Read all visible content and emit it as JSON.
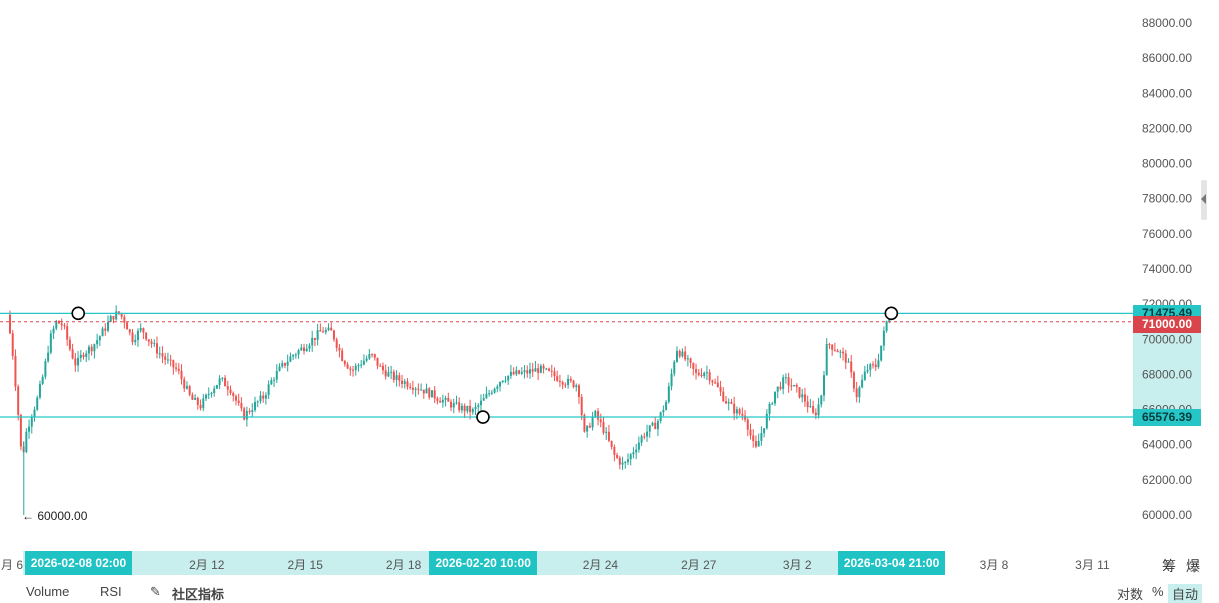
{
  "chart_data": {
    "type": "candlestick",
    "ylim": [
      60000,
      88000
    ],
    "y_ticks": [
      "88000.00",
      "86000.00",
      "84000.00",
      "82000.00",
      "80000.00",
      "78000.00",
      "76000.00",
      "74000.00",
      "72000.00",
      "70000.00",
      "68000.00",
      "66000.00",
      "64000.00",
      "62000.00",
      "60000.00"
    ],
    "x_ticks": [
      {
        "label": "月 6",
        "t": 0
      },
      {
        "label": "2月 12",
        "t": 6
      },
      {
        "label": "2月 15",
        "t": 9
      },
      {
        "label": "2月 18",
        "t": 12
      },
      {
        "label": "2月 24",
        "t": 18
      },
      {
        "label": "2月 27",
        "t": 21
      },
      {
        "label": "3月 2",
        "t": 24
      },
      {
        "label": "3月 8",
        "t": 30
      },
      {
        "label": "3月 11",
        "t": 33
      }
    ],
    "x_highlights": [
      {
        "label": "2026-02-08 02:00",
        "t": 2.08
      },
      {
        "label": "2026-02-20 10:00",
        "t": 14.42
      },
      {
        "label": "2026-03-04 21:00",
        "t": 26.87
      }
    ],
    "levels": {
      "upper": 71475.49,
      "upper_label": "71475.49",
      "lower": 65576.39,
      "lower_label": "65576.39",
      "current": 71000.0,
      "current_label": "71000.00"
    },
    "low_annotation": {
      "label": "← 60000.00",
      "value": 60000,
      "t": 0.42
    },
    "markers": [
      {
        "t": 2.08,
        "value": 71475.49
      },
      {
        "t": 14.42,
        "value": 65576.39
      },
      {
        "t": 26.87,
        "value": 71475.49
      }
    ],
    "price_path": [
      [
        0.0,
        71400
      ],
      [
        0.15,
        69500
      ],
      [
        0.3,
        66500
      ],
      [
        0.45,
        63000
      ],
      [
        0.55,
        64500
      ],
      [
        0.7,
        65500
      ],
      [
        0.9,
        66500
      ],
      [
        1.1,
        68000
      ],
      [
        1.3,
        70000
      ],
      [
        1.5,
        71000
      ],
      [
        1.7,
        70800
      ],
      [
        1.9,
        69500
      ],
      [
        2.1,
        68500
      ],
      [
        2.3,
        69200
      ],
      [
        2.6,
        69600
      ],
      [
        2.9,
        70400
      ],
      [
        3.2,
        71300
      ],
      [
        3.4,
        71500
      ],
      [
        3.6,
        71000
      ],
      [
        3.8,
        70000
      ],
      [
        4.1,
        70600
      ],
      [
        4.3,
        70000
      ],
      [
        4.6,
        69300
      ],
      [
        4.9,
        68700
      ],
      [
        5.2,
        68200
      ],
      [
        5.6,
        66600
      ],
      [
        5.9,
        66200
      ],
      [
        6.2,
        67100
      ],
      [
        6.5,
        67700
      ],
      [
        6.8,
        67200
      ],
      [
        7.0,
        66400
      ],
      [
        7.2,
        65600
      ],
      [
        7.5,
        66200
      ],
      [
        7.8,
        66700
      ],
      [
        8.1,
        67800
      ],
      [
        8.4,
        68500
      ],
      [
        8.7,
        69100
      ],
      [
        9.0,
        69500
      ],
      [
        9.3,
        70000
      ],
      [
        9.6,
        70500
      ],
      [
        9.9,
        70400
      ],
      [
        10.2,
        69000
      ],
      [
        10.5,
        68200
      ],
      [
        10.8,
        68700
      ],
      [
        11.1,
        69100
      ],
      [
        11.4,
        68300
      ],
      [
        11.8,
        67800
      ],
      [
        12.2,
        67500
      ],
      [
        12.6,
        67200
      ],
      [
        13.0,
        66800
      ],
      [
        13.4,
        66400
      ],
      [
        13.8,
        66100
      ],
      [
        14.2,
        65900
      ],
      [
        14.5,
        66500
      ],
      [
        14.8,
        67200
      ],
      [
        15.1,
        67800
      ],
      [
        15.4,
        68000
      ],
      [
        15.8,
        68100
      ],
      [
        16.2,
        68300
      ],
      [
        16.6,
        68000
      ],
      [
        17.0,
        67600
      ],
      [
        17.4,
        67400
      ],
      [
        17.6,
        64500
      ],
      [
        17.9,
        65800
      ],
      [
        18.2,
        64800
      ],
      [
        18.5,
        63400
      ],
      [
        18.8,
        62800
      ],
      [
        19.1,
        63700
      ],
      [
        19.4,
        64600
      ],
      [
        19.8,
        65200
      ],
      [
        20.1,
        66500
      ],
      [
        20.4,
        69500
      ],
      [
        20.7,
        68800
      ],
      [
        21.0,
        68000
      ],
      [
        21.3,
        68200
      ],
      [
        21.6,
        67400
      ],
      [
        21.9,
        66500
      ],
      [
        22.2,
        65900
      ],
      [
        22.5,
        65600
      ],
      [
        22.8,
        63600
      ],
      [
        23.1,
        65300
      ],
      [
        23.4,
        67000
      ],
      [
        23.7,
        67700
      ],
      [
        24.0,
        67200
      ],
      [
        24.3,
        66600
      ],
      [
        24.6,
        65600
      ],
      [
        24.8,
        66600
      ],
      [
        25.0,
        69800
      ],
      [
        25.3,
        69400
      ],
      [
        25.6,
        68800
      ],
      [
        25.9,
        66800
      ],
      [
        26.2,
        68300
      ],
      [
        26.5,
        68500
      ],
      [
        26.87,
        71475
      ]
    ]
  },
  "bottom_bar": {
    "items": [
      "Volume",
      "RSI",
      "社区指标"
    ],
    "right_items": [
      "对数",
      "%",
      "自动"
    ]
  },
  "corner_buttons": [
    "筹",
    "爆"
  ],
  "colors": {
    "up": "#26a69a",
    "down": "#ef5350",
    "level_line": "#26c6c6",
    "current_line": "#d9454a",
    "axis_text": "#555555",
    "highlight_band": "#c9eeee"
  }
}
